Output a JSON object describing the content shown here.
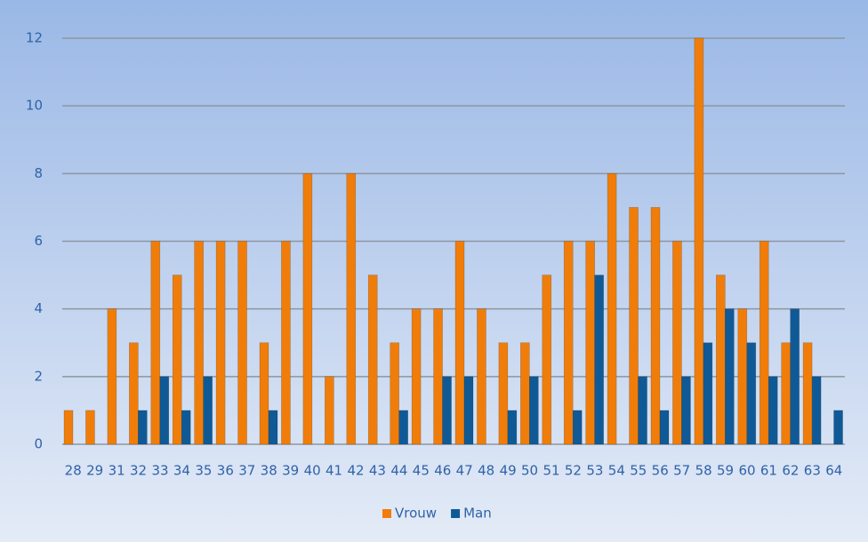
{
  "chart_data": {
    "type": "bar",
    "categories": [
      "28",
      "29",
      "31",
      "32",
      "33",
      "34",
      "35",
      "36",
      "37",
      "38",
      "39",
      "40",
      "41",
      "42",
      "43",
      "44",
      "45",
      "46",
      "47",
      "48",
      "49",
      "50",
      "51",
      "52",
      "53",
      "54",
      "55",
      "56",
      "57",
      "58",
      "59",
      "60",
      "61",
      "62",
      "63",
      "64"
    ],
    "series": [
      {
        "name": "Vrouw",
        "color": "#f07d0a",
        "values": [
          1,
          1,
          4,
          3,
          6,
          5,
          6,
          6,
          6,
          3,
          6,
          8,
          2,
          8,
          5,
          3,
          4,
          4,
          6,
          4,
          3,
          3,
          5,
          6,
          6,
          8,
          7,
          7,
          6,
          12,
          5,
          4,
          6,
          3,
          3,
          0
        ]
      },
      {
        "name": "Man",
        "color": "#0f5a96",
        "values": [
          0,
          0,
          0,
          1,
          2,
          1,
          2,
          0,
          0,
          1,
          0,
          0,
          0,
          0,
          0,
          1,
          0,
          2,
          2,
          0,
          1,
          2,
          0,
          1,
          5,
          0,
          2,
          1,
          2,
          3,
          4,
          3,
          2,
          4,
          2,
          1
        ]
      }
    ],
    "ylim": [
      0,
      12
    ],
    "yticks": [
      0,
      2,
      4,
      6,
      8,
      10,
      12
    ],
    "grid": true,
    "legend": "bottom"
  }
}
